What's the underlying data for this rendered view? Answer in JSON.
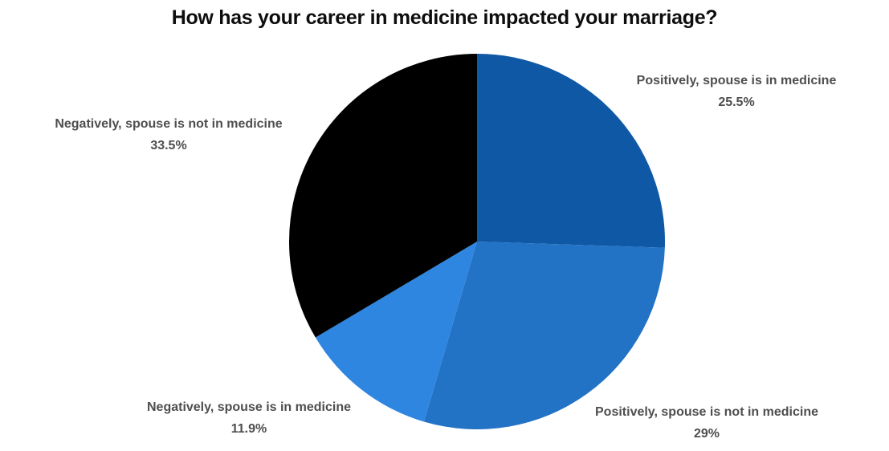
{
  "title": "How has your career in medicine impacted your marriage?",
  "chart_data": {
    "type": "pie",
    "title": "How has your career in medicine impacted your marriage?",
    "direction": "clockwise",
    "start_angle_deg": 0,
    "legend_position": "outside-labels",
    "background_color": "#ffffff",
    "label_color": "#4e4e4e",
    "slices": [
      {
        "label": "Positively, spouse is in medicine",
        "value": 25.5,
        "display": "25.5%",
        "color": "#0e58a6"
      },
      {
        "label": "Positively, spouse is not in medicine",
        "value": 29,
        "display": "29%",
        "color": "#2272c5"
      },
      {
        "label": "Negatively, spouse is in medicine",
        "value": 11.9,
        "display": "11.9%",
        "color": "#2e86e0"
      },
      {
        "label": "Negatively, spouse is not in medicine",
        "value": 33.5,
        "display": "33.5%",
        "color": "#000000"
      }
    ]
  }
}
